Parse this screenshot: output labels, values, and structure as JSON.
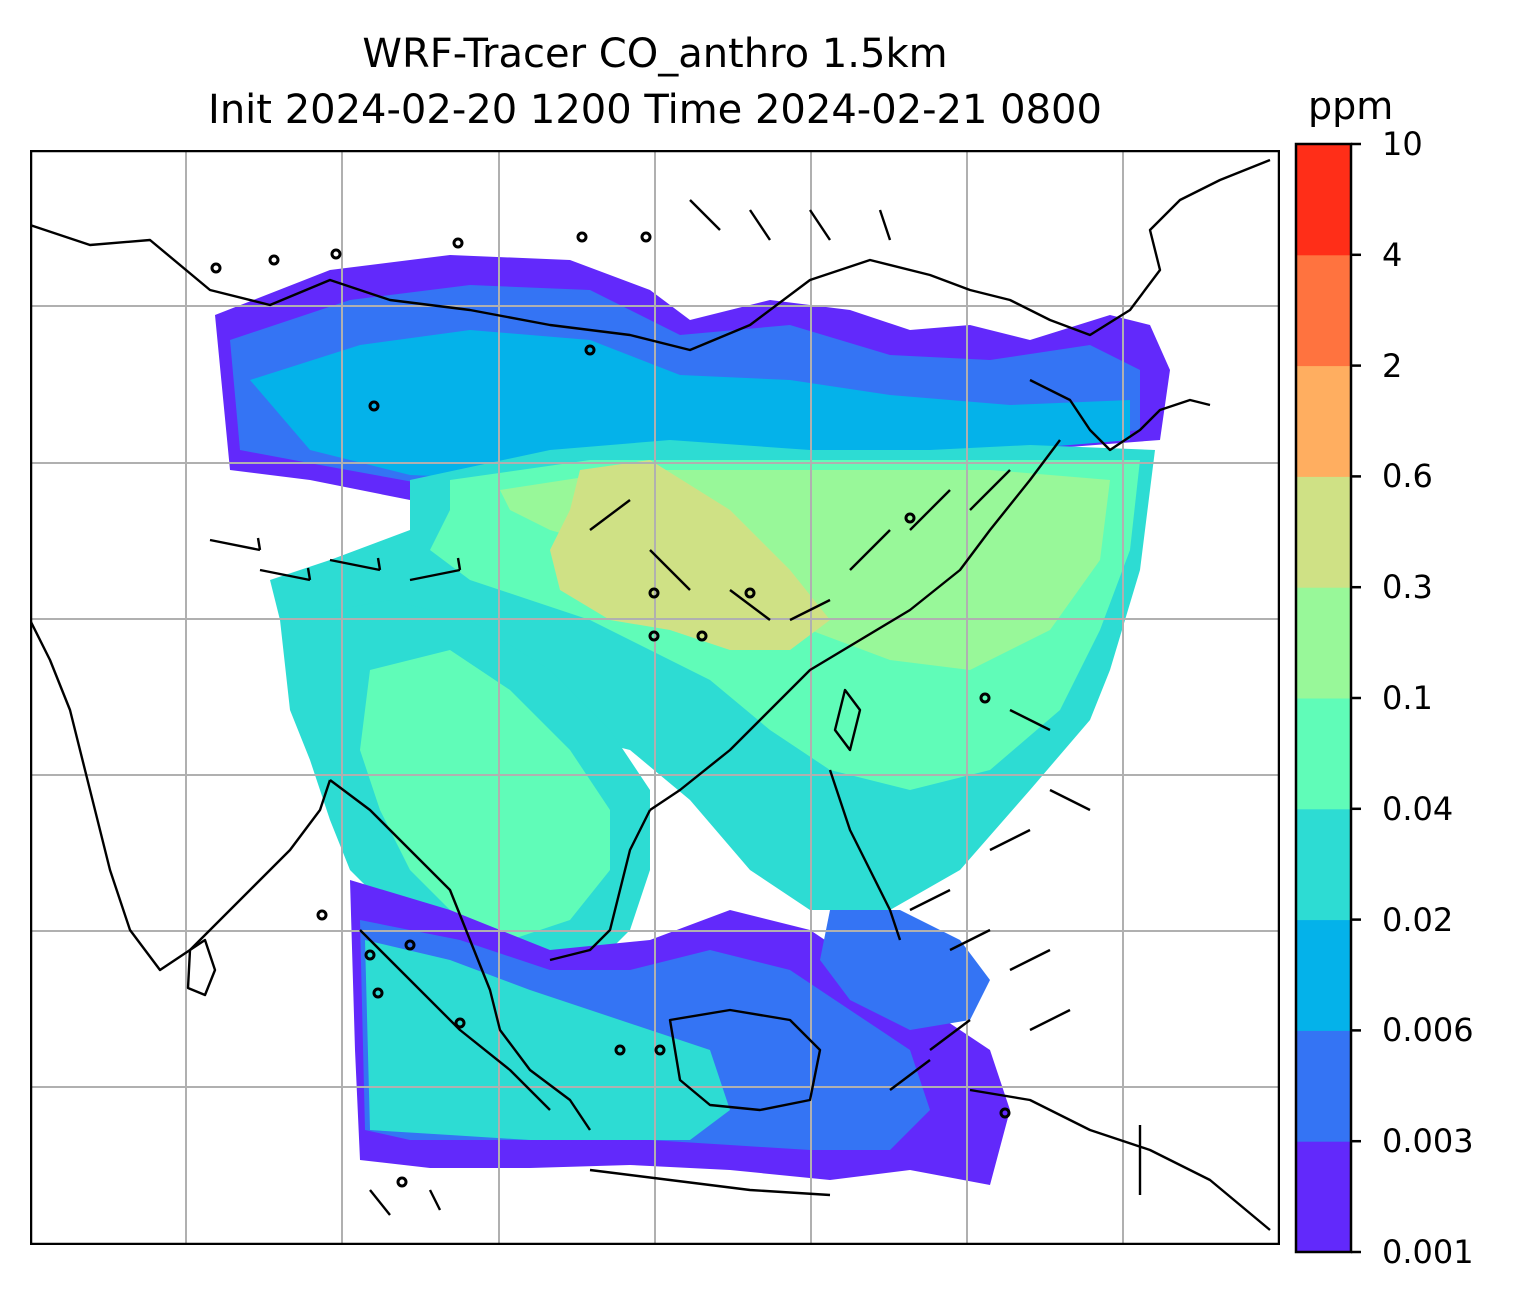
{
  "title": {
    "line1": "WRF-Tracer CO_anthro 1.5km",
    "line2": "Init 2024-02-20 1200 Time 2024-02-21 0800"
  },
  "colorbar": {
    "unit": "ppm",
    "levels": [
      "0.001",
      "0.003",
      "0.006",
      "0.02",
      "0.04",
      "0.1",
      "0.3",
      "0.6",
      "2",
      "4",
      "10"
    ],
    "colors": [
      "#6229fb",
      "#3474f4",
      "#04b2ea",
      "#2ddcd3",
      "#60fcb8",
      "#98f899",
      "#cfe185",
      "#ffae60",
      "#ff733f",
      "#ff2e18"
    ]
  },
  "map": {
    "gridline_color": "#b0b0b0",
    "coastline_color": "#000000",
    "background": "#ffffff"
  }
}
